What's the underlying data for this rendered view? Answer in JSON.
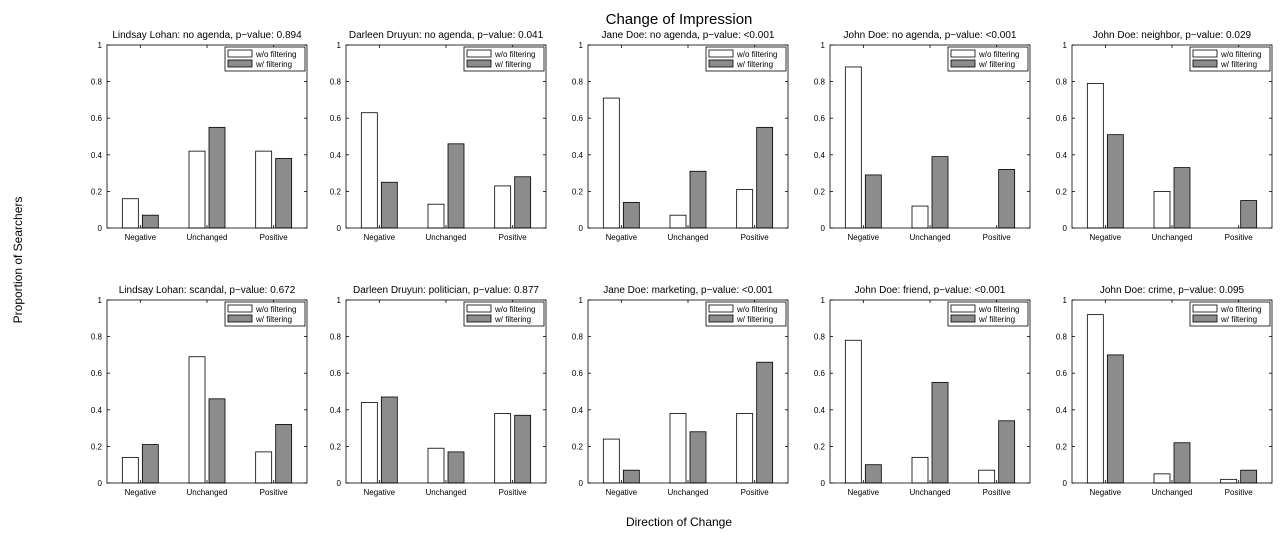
{
  "figure": {
    "title": "Change of Impression",
    "xlabel": "Direction of Change",
    "ylabel": "Proportion of Searchers"
  },
  "colors": {
    "without": "#ffffff",
    "with": "#8c8c8c",
    "stroke": "#000000"
  },
  "chart_data": [
    {
      "type": "bar",
      "title": "Lindsay Lohan: no agenda, p−value: 0.894",
      "categories": [
        "Negative",
        "Unchanged",
        "Positive"
      ],
      "ylim": [
        0,
        1
      ],
      "yticks": [
        "0",
        "0.2",
        "0.4",
        "0.6",
        "0.8",
        "1"
      ],
      "legend": "top-right",
      "series": [
        {
          "name": "w/o filtering",
          "values": [
            0.16,
            0.42,
            0.42
          ]
        },
        {
          "name": "w/ filtering",
          "values": [
            0.07,
            0.55,
            0.38
          ]
        }
      ]
    },
    {
      "type": "bar",
      "title": "Darleen Druyun: no agenda, p−value: 0.041",
      "categories": [
        "Negative",
        "Unchanged",
        "Positive"
      ],
      "ylim": [
        0,
        1
      ],
      "yticks": [
        "0",
        "0.2",
        "0.4",
        "0.6",
        "0.8",
        "1"
      ],
      "legend": "top-right",
      "series": [
        {
          "name": "w/o filtering",
          "values": [
            0.63,
            0.13,
            0.23
          ]
        },
        {
          "name": "w/ filtering",
          "values": [
            0.25,
            0.46,
            0.28
          ]
        }
      ]
    },
    {
      "type": "bar",
      "title": "Jane Doe: no agenda, p−value: <0.001",
      "categories": [
        "Negative",
        "Unchanged",
        "Positive"
      ],
      "ylim": [
        0,
        1
      ],
      "yticks": [
        "0",
        "0.2",
        "0.4",
        "0.6",
        "0.8",
        "1"
      ],
      "legend": "top-right",
      "series": [
        {
          "name": "w/o filtering",
          "values": [
            0.71,
            0.07,
            0.21
          ]
        },
        {
          "name": "w/ filtering",
          "values": [
            0.14,
            0.31,
            0.55
          ]
        }
      ]
    },
    {
      "type": "bar",
      "title": "John Doe: no agenda, p−value: <0.001",
      "categories": [
        "Negative",
        "Unchanged",
        "Positive"
      ],
      "ylim": [
        0,
        1
      ],
      "yticks": [
        "0",
        "0.2",
        "0.4",
        "0.6",
        "0.8",
        "1"
      ],
      "legend": "top-right",
      "series": [
        {
          "name": "w/o filtering",
          "values": [
            0.88,
            0.12,
            0.0
          ]
        },
        {
          "name": "w/ filtering",
          "values": [
            0.29,
            0.39,
            0.32
          ]
        }
      ]
    },
    {
      "type": "bar",
      "title": "John Doe: neighbor, p−value: 0.029",
      "categories": [
        "Negative",
        "Unchanged",
        "Positive"
      ],
      "ylim": [
        0,
        1
      ],
      "yticks": [
        "0",
        "0.2",
        "0.4",
        "0.6",
        "0.8",
        "1"
      ],
      "legend": "top-right",
      "series": [
        {
          "name": "w/o filtering",
          "values": [
            0.79,
            0.2,
            0.0
          ]
        },
        {
          "name": "w/ filtering",
          "values": [
            0.51,
            0.33,
            0.15
          ]
        }
      ]
    },
    {
      "type": "bar",
      "title": "Lindsay Lohan: scandal, p−value: 0.672",
      "categories": [
        "Negative",
        "Unchanged",
        "Positive"
      ],
      "ylim": [
        0,
        1
      ],
      "yticks": [
        "0",
        "0.2",
        "0.4",
        "0.6",
        "0.8",
        "1"
      ],
      "legend": "top-right",
      "series": [
        {
          "name": "w/o filtering",
          "values": [
            0.14,
            0.69,
            0.17
          ]
        },
        {
          "name": "w/ filtering",
          "values": [
            0.21,
            0.46,
            0.32
          ]
        }
      ]
    },
    {
      "type": "bar",
      "title": "Darleen Druyun: politician, p−value: 0.877",
      "categories": [
        "Negative",
        "Unchanged",
        "Positive"
      ],
      "ylim": [
        0,
        1
      ],
      "yticks": [
        "0",
        "0.2",
        "0.4",
        "0.6",
        "0.8",
        "1"
      ],
      "legend": "top-right",
      "series": [
        {
          "name": "w/o filtering",
          "values": [
            0.44,
            0.19,
            0.38
          ]
        },
        {
          "name": "w/ filtering",
          "values": [
            0.47,
            0.17,
            0.37
          ]
        }
      ]
    },
    {
      "type": "bar",
      "title": "Jane Doe: marketing, p−value: <0.001",
      "categories": [
        "Negative",
        "Unchanged",
        "Positive"
      ],
      "ylim": [
        0,
        1
      ],
      "yticks": [
        "0",
        "0.2",
        "0.4",
        "0.6",
        "0.8",
        "1"
      ],
      "legend": "top-right",
      "series": [
        {
          "name": "w/o filtering",
          "values": [
            0.24,
            0.38,
            0.38
          ]
        },
        {
          "name": "w/ filtering",
          "values": [
            0.07,
            0.28,
            0.66
          ]
        }
      ]
    },
    {
      "type": "bar",
      "title": "John Doe: friend, p−value: <0.001",
      "categories": [
        "Negative",
        "Unchanged",
        "Positive"
      ],
      "ylim": [
        0,
        1
      ],
      "yticks": [
        "0",
        "0.2",
        "0.4",
        "0.6",
        "0.8",
        "1"
      ],
      "legend": "top-right",
      "series": [
        {
          "name": "w/o filtering",
          "values": [
            0.78,
            0.14,
            0.07
          ]
        },
        {
          "name": "w/ filtering",
          "values": [
            0.1,
            0.55,
            0.34
          ]
        }
      ]
    },
    {
      "type": "bar",
      "title": "John Doe: crime, p−value: 0.095",
      "categories": [
        "Negative",
        "Unchanged",
        "Positive"
      ],
      "ylim": [
        0,
        1
      ],
      "yticks": [
        "0",
        "0.2",
        "0.4",
        "0.6",
        "0.8",
        "1"
      ],
      "legend": "top-right",
      "series": [
        {
          "name": "w/o filtering",
          "values": [
            0.92,
            0.05,
            0.02
          ]
        },
        {
          "name": "w/ filtering",
          "values": [
            0.7,
            0.22,
            0.07
          ]
        }
      ]
    }
  ]
}
